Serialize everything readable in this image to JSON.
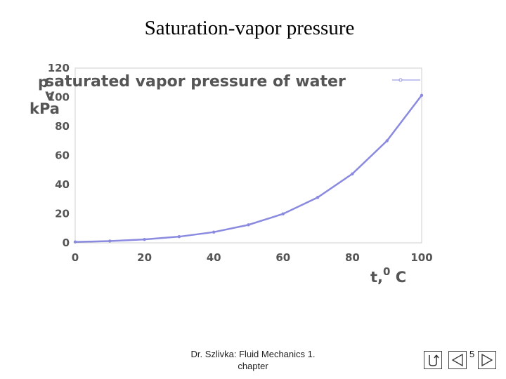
{
  "slide": {
    "title": "Saturation-vapor pressure",
    "footer_line1": "Dr. Szlivka:  Fluid Mechanics 1.",
    "footer_line2": "chapter",
    "page_number": "5"
  },
  "chart_data": {
    "type": "line",
    "title": "",
    "xlabel_main": "t,",
    "xlabel_sup": "0",
    "xlabel_unit": " C",
    "ylabel_line1": "p",
    "ylabel_line2": "v",
    "ylabel_line3": "kPa",
    "xlim": [
      0,
      100
    ],
    "ylim": [
      0,
      120
    ],
    "x_ticks": [
      0,
      20,
      40,
      60,
      80,
      100
    ],
    "y_ticks": [
      0,
      20,
      40,
      60,
      80,
      100,
      120
    ],
    "legend_placement": "top-right",
    "grid": false,
    "series": [
      {
        "name": "saturated vapor pressure of water",
        "color": "#8a8ae0",
        "x": [
          0,
          10,
          20,
          30,
          40,
          50,
          60,
          70,
          80,
          90,
          100
        ],
        "y": [
          0.61,
          1.23,
          2.34,
          4.25,
          7.38,
          12.35,
          19.9,
          31.2,
          47.4,
          70.1,
          101.3
        ]
      }
    ]
  }
}
